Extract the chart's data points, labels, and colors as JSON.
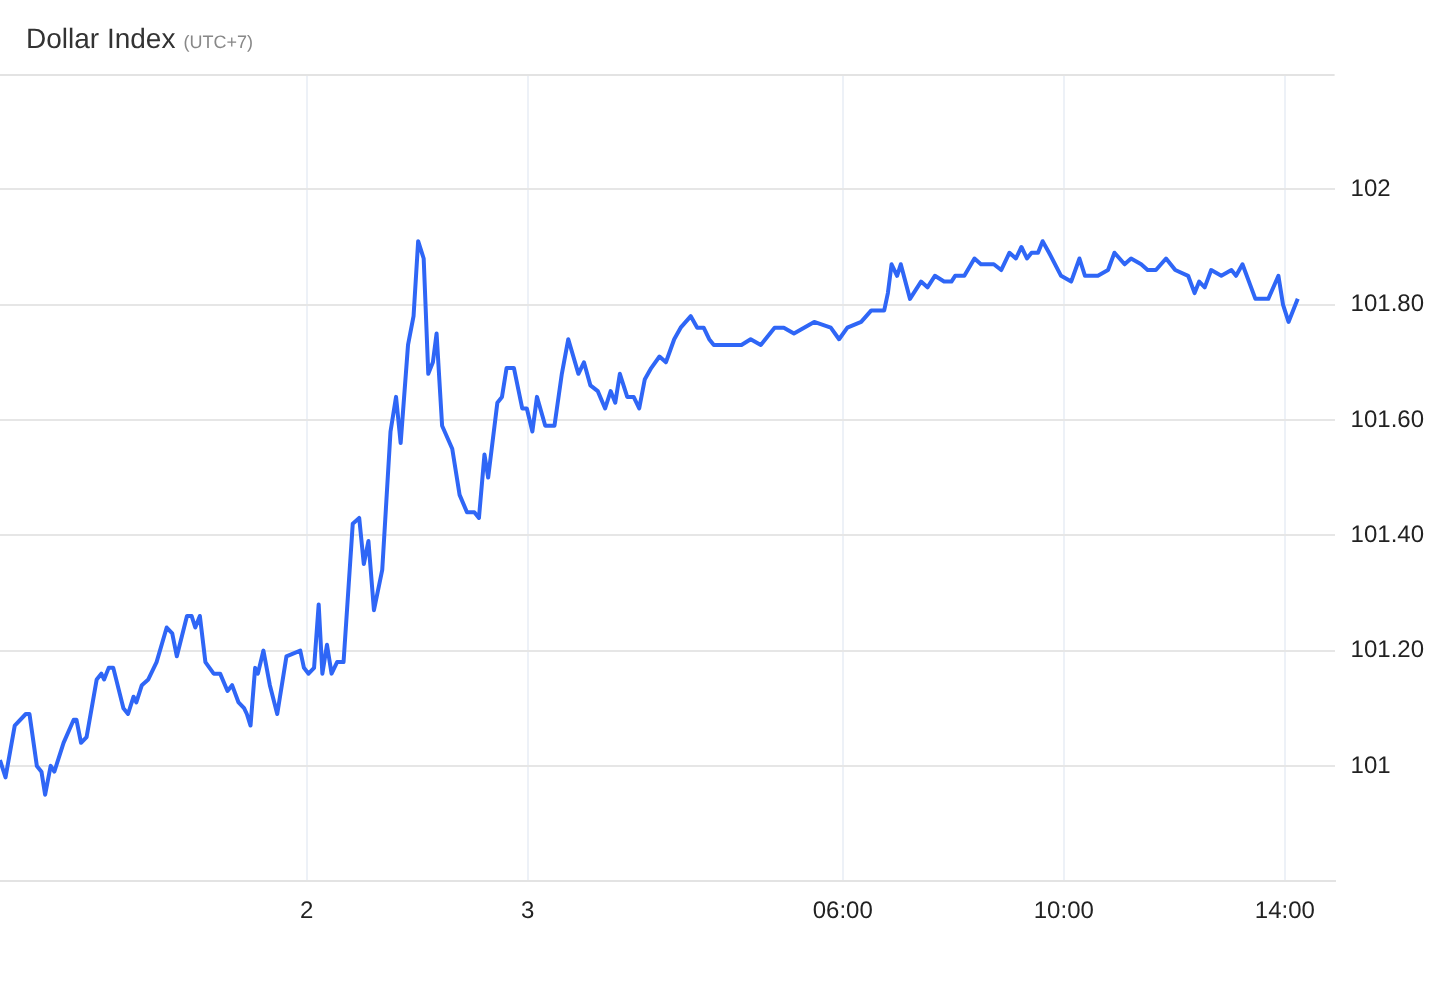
{
  "chart_data": {
    "type": "line",
    "title": "Dollar Index",
    "subtitle": "(UTC+7)",
    "color": "#2f66f6",
    "grid": true,
    "xlim": [
      "--02-02T14:45",
      "--02-03T14:54"
    ],
    "xticks": [
      {
        "value": "--02-02T20:18",
        "label": "2"
      },
      {
        "value": "--02-03T00:18",
        "label": "3"
      },
      {
        "value": "--02-03T06:00",
        "label": "06:00"
      },
      {
        "value": "--02-03T10:00",
        "label": "10:00"
      },
      {
        "value": "--02-03T14:00",
        "label": "14:00"
      }
    ],
    "ylim": [
      100.8,
      102.2
    ],
    "yticks": [
      101,
      {
        "value": 101.2,
        "label": "101.20"
      },
      {
        "value": 101.4,
        "label": "101.40"
      },
      {
        "value": 101.6,
        "label": "101.60"
      },
      {
        "value": 101.8,
        "label": "101.80"
      },
      102
    ],
    "x": [
      "--02-02T14:45",
      "--02-02T14:51",
      "--02-02T15:01",
      "--02-02T15:13",
      "--02-02T15:17",
      "--02-02T15:25",
      "--02-02T15:30",
      "--02-02T15:34",
      "--02-02T15:40",
      "--02-02T15:44",
      "--02-02T15:54",
      "--02-02T16:05",
      "--02-02T16:08",
      "--02-02T16:13",
      "--02-02T16:19",
      "--02-02T16:30",
      "--02-02T16:35",
      "--02-02T16:38",
      "--02-02T16:43",
      "--02-02T16:48",
      "--02-02T16:59",
      "--02-02T17:04",
      "--02-02T17:10",
      "--02-02T17:13",
      "--02-02T17:19",
      "--02-02T17:26",
      "--02-02T17:35",
      "--02-02T17:46",
      "--02-02T17:52",
      "--02-02T17:57",
      "--02-02T18:08",
      "--02-02T18:13",
      "--02-02T18:17",
      "--02-02T18:22",
      "--02-02T18:28",
      "--02-02T18:37",
      "--02-02T18:44",
      "--02-02T18:52",
      "--02-02T18:57",
      "--02-02T19:04",
      "--02-02T19:10",
      "--02-02T19:13",
      "--02-02T19:17",
      "--02-02T19:22",
      "--02-02T19:25",
      "--02-02T19:31",
      "--02-02T19:38",
      "--02-02T19:46",
      "--02-02T19:56",
      "--02-02T20:11",
      "--02-02T20:15",
      "--02-02T20:20",
      "--02-02T20:26",
      "--02-02T20:31",
      "--02-02T20:35",
      "--02-02T20:40",
      "--02-02T20:45",
      "--02-02T20:51",
      "--02-02T20:58",
      "--02-02T21:08",
      "--02-02T21:15",
      "--02-02T21:20",
      "--02-02T21:25",
      "--02-02T21:31",
      "--02-02T21:40",
      "--02-02T21:49",
      "--02-02T21:55",
      "--02-02T22:00",
      "--02-02T22:08",
      "--02-02T22:14",
      "--02-02T22:19",
      "--02-02T22:25",
      "--02-02T22:30",
      "--02-02T22:35",
      "--02-02T22:39",
      "--02-02T22:45",
      "--02-02T22:56",
      "--02-02T23:04",
      "--02-02T23:12",
      "--02-02T23:20",
      "--02-02T23:25",
      "--02-02T23:31",
      "--02-02T23:35",
      "--02-02T23:45",
      "--02-02T23:50",
      "--02-02T23:55",
      "--02-03T00:03",
      "--02-03T00:12",
      "--02-03T00:17",
      "--02-03T00:23",
      "--02-03T00:28",
      "--02-03T00:37",
      "--02-03T00:47",
      "--02-03T00:55",
      "--02-03T01:02",
      "--02-03T01:13",
      "--02-03T01:19",
      "--02-03T01:26",
      "--02-03T01:34",
      "--02-03T01:42",
      "--02-03T01:48",
      "--02-03T01:53",
      "--02-03T01:58",
      "--02-03T02:06",
      "--02-03T02:13",
      "--02-03T02:19",
      "--02-03T02:25",
      "--02-03T02:32",
      "--02-03T02:41",
      "--02-03T02:48",
      "--02-03T02:57",
      "--02-03T03:04",
      "--02-03T03:15",
      "--02-03T03:22",
      "--02-03T03:29",
      "--02-03T03:35",
      "--02-03T03:40",
      "--02-03T03:51",
      "--02-03T04:02",
      "--02-03T04:10",
      "--02-03T04:20",
      "--02-03T04:31",
      "--02-03T04:46",
      "--02-03T04:56",
      "--02-03T05:07",
      "--02-03T05:29",
      "--02-03T05:47",
      "--02-03T05:56",
      "--02-03T06:05",
      "--02-03T06:20",
      "--02-03T06:31",
      "--02-03T06:45",
      "--02-03T06:49",
      "--02-03T06:53",
      "--02-03T06:59",
      "--02-03T07:03",
      "--02-03T07:13",
      "--02-03T07:25",
      "--02-03T07:32",
      "--02-03T07:40",
      "--02-03T07:50",
      "--02-03T07:58",
      "--02-03T08:02",
      "--02-03T08:12",
      "--02-03T08:23",
      "--02-03T08:30",
      "--02-03T08:44",
      "--02-03T08:52",
      "--02-03T09:01",
      "--02-03T09:08",
      "--02-03T09:14",
      "--02-03T09:20",
      "--02-03T09:25",
      "--02-03T09:32",
      "--02-03T09:37",
      "--02-03T09:44",
      "--02-03T09:57",
      "--02-03T10:08",
      "--02-03T10:17",
      "--02-03T10:23",
      "--02-03T10:37",
      "--02-03T10:48",
      "--02-03T10:55",
      "--02-03T11:06",
      "--02-03T11:13",
      "--02-03T11:24",
      "--02-03T11:31",
      "--02-03T11:40",
      "--02-03T11:51",
      "--02-03T12:01",
      "--02-03T12:15",
      "--02-03T12:22",
      "--02-03T12:27",
      "--02-03T12:33",
      "--02-03T12:40",
      "--02-03T12:51",
      "--02-03T13:02",
      "--02-03T13:07",
      "--02-03T13:14",
      "--02-03T13:28",
      "--02-03T13:42",
      "--02-03T13:53",
      "--02-03T13:58",
      "--02-03T14:04",
      "--02-03T14:14"
    ],
    "values": [
      101.01,
      100.98,
      101.07,
      101.09,
      101.09,
      101.0,
      100.99,
      100.95,
      101.0,
      100.99,
      101.04,
      101.08,
      101.08,
      101.04,
      101.05,
      101.15,
      101.16,
      101.15,
      101.17,
      101.17,
      101.1,
      101.09,
      101.12,
      101.11,
      101.14,
      101.15,
      101.18,
      101.24,
      101.23,
      101.19,
      101.26,
      101.26,
      101.24,
      101.26,
      101.18,
      101.16,
      101.16,
      101.13,
      101.14,
      101.11,
      101.1,
      101.09,
      101.07,
      101.17,
      101.16,
      101.2,
      101.14,
      101.09,
      101.19,
      101.2,
      101.17,
      101.16,
      101.17,
      101.28,
      101.16,
      101.21,
      101.16,
      101.18,
      101.18,
      101.42,
      101.43,
      101.35,
      101.39,
      101.27,
      101.34,
      101.58,
      101.64,
      101.56,
      101.73,
      101.78,
      101.91,
      101.88,
      101.68,
      101.7,
      101.75,
      101.59,
      101.55,
      101.47,
      101.44,
      101.44,
      101.43,
      101.54,
      101.5,
      101.63,
      101.64,
      101.69,
      101.69,
      101.62,
      101.62,
      101.58,
      101.64,
      101.59,
      101.59,
      101.68,
      101.74,
      101.68,
      101.7,
      101.66,
      101.65,
      101.62,
      101.65,
      101.63,
      101.68,
      101.64,
      101.64,
      101.62,
      101.67,
      101.69,
      101.71,
      101.7,
      101.74,
      101.76,
      101.78,
      101.76,
      101.76,
      101.74,
      101.73,
      101.73,
      101.73,
      101.73,
      101.74,
      101.73,
      101.76,
      101.76,
      101.75,
      101.77,
      101.76,
      101.74,
      101.76,
      101.77,
      101.79,
      101.79,
      101.82,
      101.87,
      101.85,
      101.87,
      101.81,
      101.84,
      101.83,
      101.85,
      101.84,
      101.84,
      101.85,
      101.85,
      101.88,
      101.87,
      101.87,
      101.86,
      101.89,
      101.88,
      101.9,
      101.88,
      101.89,
      101.89,
      101.91,
      101.89,
      101.85,
      101.84,
      101.88,
      101.85,
      101.85,
      101.86,
      101.89,
      101.87,
      101.88,
      101.87,
      101.86,
      101.86,
      101.88,
      101.86,
      101.85,
      101.82,
      101.84,
      101.83,
      101.86,
      101.85,
      101.86,
      101.85,
      101.87,
      101.81,
      101.81,
      101.85,
      101.8,
      101.77,
      101.81
    ]
  }
}
